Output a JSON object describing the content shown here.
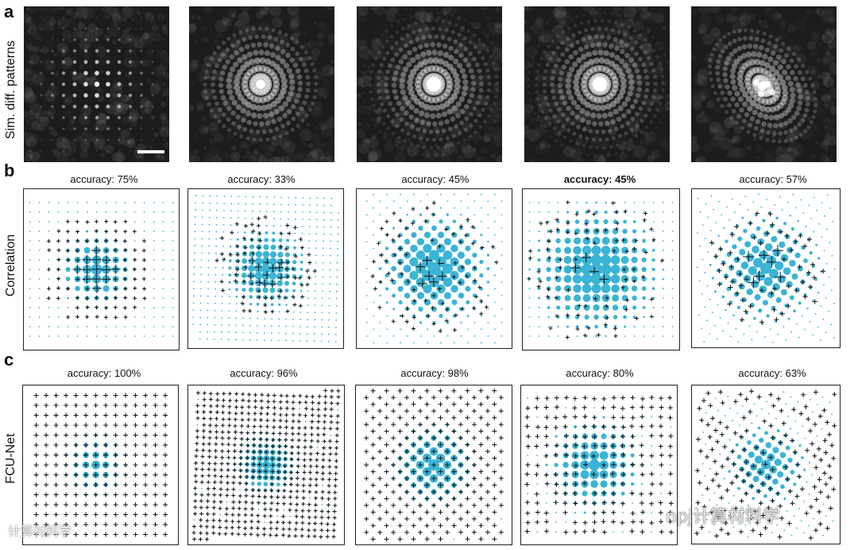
{
  "panels": {
    "a": {
      "letter": "a",
      "row_label": "Sim. diff. patterns"
    },
    "b": {
      "letter": "b",
      "row_label": "Correlation",
      "accuracies": [
        "accuracy: 75%",
        "accuracy: 33%",
        "accuracy: 45%",
        "accuracy: 45%",
        "accuracy: 57%"
      ]
    },
    "c": {
      "letter": "c",
      "row_label": "FCU-Net",
      "accuracies": [
        "accuracy: 100%",
        "accuracy: 96%",
        "accuracy: 98%",
        "accuracy: 80%",
        "accuracy: 63%"
      ]
    }
  },
  "colors": {
    "dot": "#3bb4d6",
    "cross": "#111111",
    "pattern_bg": "#1c1c1c"
  },
  "watermark": {
    "right": "npj计算材料学",
    "left": "计算材料学"
  }
}
